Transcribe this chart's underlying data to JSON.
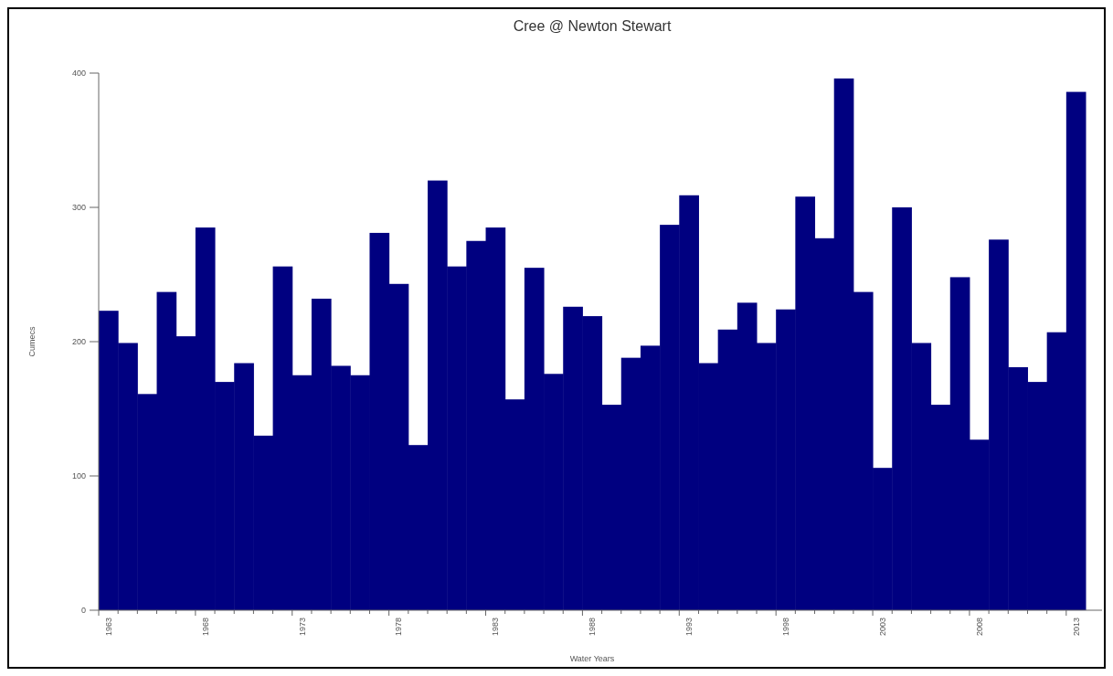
{
  "chart_data": {
    "type": "bar",
    "title": "Cree @ Newton Stewart",
    "xlabel": "Water Years",
    "ylabel": "Cumecs",
    "categories": [
      "1963",
      null,
      null,
      null,
      null,
      "1968",
      null,
      null,
      null,
      null,
      "1973",
      null,
      null,
      null,
      null,
      "1978",
      null,
      null,
      null,
      null,
      "1983",
      null,
      null,
      null,
      null,
      "1988",
      null,
      null,
      null,
      null,
      "1993",
      null,
      null,
      null,
      null,
      "1998",
      null,
      null,
      null,
      null,
      "2003",
      null,
      null,
      null,
      null,
      "2008",
      null,
      null,
      null,
      null,
      "2013"
    ],
    "values": [
      223,
      199,
      161,
      237,
      204,
      285,
      170,
      184,
      130,
      256,
      175,
      232,
      182,
      175,
      281,
      243,
      123,
      320,
      256,
      275,
      285,
      157,
      255,
      176,
      226,
      219,
      153,
      188,
      197,
      287,
      309,
      184,
      209,
      229,
      199,
      224,
      308,
      277,
      396,
      237,
      106,
      300,
      199,
      153,
      248,
      127,
      276,
      181,
      170,
      207,
      386
    ],
    "color": "#000080",
    "ylim": [
      0,
      400
    ],
    "yticks": [
      0,
      100,
      200,
      300,
      400
    ],
    "grid": false
  }
}
